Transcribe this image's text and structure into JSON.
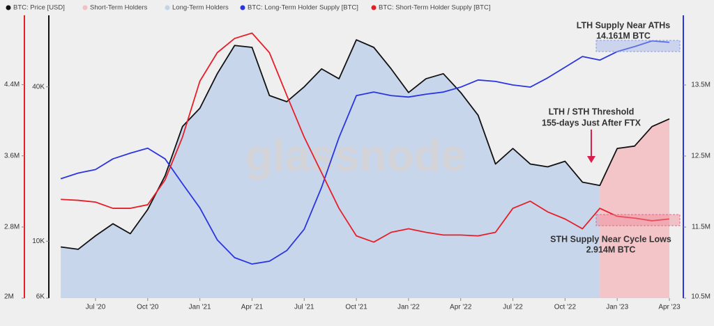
{
  "chart_data": {
    "type": "line",
    "x": [
      "2020-05",
      "2020-06",
      "2020-07",
      "2020-08",
      "2020-09",
      "2020-10",
      "2020-11",
      "2020-12",
      "2021-01",
      "2021-02",
      "2021-03",
      "2021-04",
      "2021-05",
      "2021-06",
      "2021-07",
      "2021-08",
      "2021-09",
      "2021-10",
      "2021-11",
      "2021-12",
      "2022-01",
      "2022-02",
      "2022-03",
      "2022-04",
      "2022-05",
      "2022-06",
      "2022-07",
      "2022-08",
      "2022-09",
      "2022-10",
      "2022-11",
      "2022-12",
      "2023-01",
      "2023-02",
      "2023-03",
      "2023-04"
    ],
    "series": [
      {
        "name": "BTC: Price [USD]",
        "color": "#111111",
        "axis": "y",
        "values": [
          9500,
          9300,
          10500,
          11700,
          10700,
          13300,
          18000,
          28000,
          33000,
          45000,
          58000,
          57000,
          37000,
          35000,
          40000,
          47000,
          43000,
          61000,
          57000,
          47000,
          38000,
          43000,
          45000,
          38000,
          31000,
          20000,
          23000,
          20000,
          19500,
          20500,
          17000,
          16500,
          23000,
          23500,
          28000,
          30000
        ]
      },
      {
        "name": "Short-Term Holders",
        "color": "#f3bfc3",
        "axis": "y",
        "kind": "area",
        "values": [
          null,
          null,
          null,
          null,
          null,
          null,
          null,
          null,
          null,
          null,
          null,
          null,
          null,
          null,
          null,
          null,
          null,
          null,
          null,
          null,
          null,
          null,
          null,
          null,
          null,
          null,
          null,
          null,
          null,
          null,
          null,
          16500,
          23000,
          23500,
          28000,
          30000
        ]
      },
      {
        "name": "Long-Term Holders",
        "color": "#c3d3ea",
        "axis": "y",
        "kind": "area",
        "values": [
          9500,
          9300,
          10500,
          11700,
          10700,
          13300,
          18000,
          28000,
          33000,
          45000,
          58000,
          57000,
          37000,
          35000,
          40000,
          47000,
          43000,
          61000,
          57000,
          47000,
          38000,
          43000,
          45000,
          38000,
          31000,
          20000,
          23000,
          20000,
          19500,
          20500,
          17000,
          16500,
          null,
          null,
          null,
          null
        ]
      },
      {
        "name": "BTC: Long-Term Holder Supply [BTC]",
        "color": "#2a35e0",
        "axis": "y2",
        "values": [
          12180000,
          12260000,
          12310000,
          12460000,
          12540000,
          12610000,
          12460000,
          12110000,
          11770000,
          11320000,
          11070000,
          10980000,
          11020000,
          11170000,
          11470000,
          12060000,
          12760000,
          13350000,
          13400000,
          13350000,
          13330000,
          13370000,
          13400000,
          13470000,
          13570000,
          13550000,
          13500000,
          13470000,
          13600000,
          13750000,
          13900000,
          13850000,
          13970000,
          14040000,
          14120000,
          14100000
        ]
      },
      {
        "name": "BTC: Short-Term Holder Supply [BTC]",
        "color": "#e61e28",
        "axis": "y3",
        "values": [
          3110000,
          3100000,
          3080000,
          3010000,
          3010000,
          3050000,
          3330000,
          3810000,
          4440000,
          4760000,
          4920000,
          4980000,
          4760000,
          4280000,
          3810000,
          3410000,
          3010000,
          2700000,
          2630000,
          2740000,
          2780000,
          2740000,
          2710000,
          2710000,
          2700000,
          2740000,
          3010000,
          3090000,
          2970000,
          2890000,
          2780000,
          3010000,
          2920000,
          2900000,
          2870000,
          2890000
        ]
      }
    ],
    "xticks": [
      {
        "value": "2020-07",
        "label": "Jul '20"
      },
      {
        "value": "2020-10",
        "label": "Oct '20"
      },
      {
        "value": "2021-01",
        "label": "Jan '21"
      },
      {
        "value": "2021-04",
        "label": "Apr '21"
      },
      {
        "value": "2021-07",
        "label": "Jul '21"
      },
      {
        "value": "2021-10",
        "label": "Oct '21"
      },
      {
        "value": "2022-01",
        "label": "Jan '22"
      },
      {
        "value": "2022-04",
        "label": "Apr '22"
      },
      {
        "value": "2022-07",
        "label": "Jul '22"
      },
      {
        "value": "2022-10",
        "label": "Oct '22"
      },
      {
        "value": "2023-01",
        "label": "Jan '23"
      },
      {
        "value": "2023-04",
        "label": "Apr '23"
      }
    ],
    "yscale": "log",
    "ylim": [
      6000,
      76000
    ],
    "yticks": [
      {
        "value": 6000,
        "label": "6K"
      },
      {
        "value": 10000,
        "label": "10K"
      },
      {
        "value": 40000,
        "label": "40K"
      }
    ],
    "y2lim": [
      10500000,
      14480000
    ],
    "y2ticks": [
      {
        "value": 10500000,
        "label": "10.5M"
      },
      {
        "value": 11500000,
        "label": "11.5M"
      },
      {
        "value": 12500000,
        "label": "12.5M"
      },
      {
        "value": 13500000,
        "label": "13.5M"
      }
    ],
    "y3lim": [
      2000000,
      5180000
    ],
    "y3ticks": [
      {
        "value": 2000000,
        "label": "2M"
      },
      {
        "value": 2800000,
        "label": "2.8M"
      },
      {
        "value": 3600000,
        "label": "3.6M"
      },
      {
        "value": 4400000,
        "label": "4.4M"
      }
    ],
    "annotations": [
      "LTH Supply Near ATHs",
      "14.161M BTC",
      "LTH / STH Threshold",
      "155-days Just After FTX",
      "STH Supply Near Cycle Lows",
      "2.914M BTC"
    ],
    "watermark": "glassnode"
  }
}
